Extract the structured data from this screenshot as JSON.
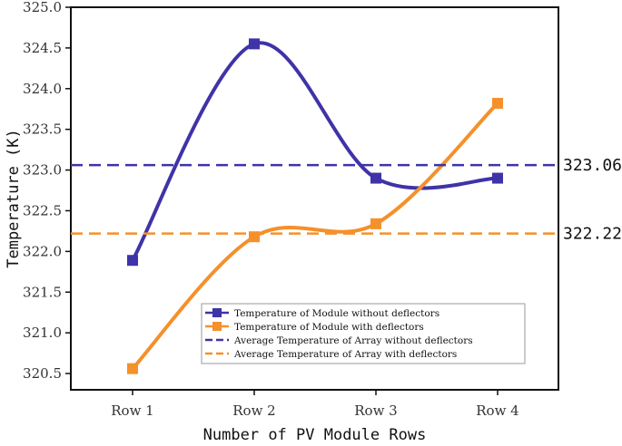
{
  "chart_data": {
    "type": "line",
    "categories": [
      "Row 1",
      "Row 2",
      "Row 3",
      "Row 4"
    ],
    "xlabel": "Number of PV Module Rows",
    "ylabel": "Temperature (K)",
    "ylim": [
      320.3,
      325.0
    ],
    "yticks": [
      "320.5",
      "321.0",
      "321.5",
      "322.0",
      "322.5",
      "323.0",
      "323.5",
      "324.0",
      "324.5",
      "325.0"
    ],
    "grid": false,
    "legend_position": "bottom-right",
    "series": [
      {
        "name": "Temperature of Module without deflectors",
        "values": [
          321.89,
          324.55,
          322.9,
          322.9
        ],
        "color": "#3f33a8",
        "style": "solid",
        "marker": "square"
      },
      {
        "name": "Temperature of Module with deflectors",
        "values": [
          320.56,
          322.18,
          322.34,
          323.82
        ],
        "color": "#f5902a",
        "style": "solid",
        "marker": "square"
      }
    ],
    "reference_lines": [
      {
        "name": "Average Temperature of Array without deflectors",
        "value": 323.06,
        "label": "323.06",
        "color": "#3f33a8",
        "style": "dashed"
      },
      {
        "name": "Average Temperature of Array with deflectors",
        "value": 322.22,
        "label": "322.22",
        "color": "#f5902a",
        "style": "dashed"
      }
    ]
  }
}
